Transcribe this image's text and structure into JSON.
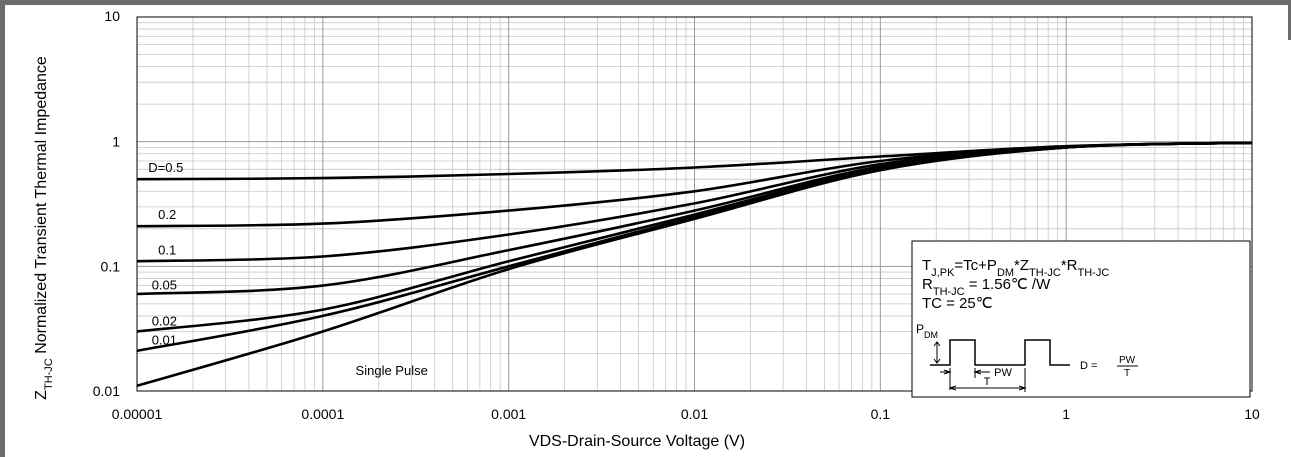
{
  "chart_data": {
    "type": "line",
    "x_scale": "log",
    "y_scale": "log",
    "xlim": [
      1e-05,
      10
    ],
    "ylim": [
      0.01,
      10
    ],
    "xlabel": "VDS-Drain-Source Voltage (V)",
    "ylabel_prefix": "Z",
    "ylabel_sub": "TH-JC",
    "ylabel_rest": " Normalized Transient Thermal Impedance",
    "x_ticks": [
      {
        "v": 1e-05,
        "label": "0.00001"
      },
      {
        "v": 0.0001,
        "label": "0.0001"
      },
      {
        "v": 0.001,
        "label": "0.001"
      },
      {
        "v": 0.01,
        "label": "0.01"
      },
      {
        "v": 0.1,
        "label": "0.1"
      },
      {
        "v": 1,
        "label": "1"
      },
      {
        "v": 10,
        "label": "10"
      }
    ],
    "y_ticks": [
      {
        "v": 0.01,
        "label": "0.01"
      },
      {
        "v": 0.1,
        "label": "0.1"
      },
      {
        "v": 1,
        "label": "1"
      },
      {
        "v": 10,
        "label": "10"
      }
    ],
    "grid": true,
    "series": [
      {
        "name": "D=0.5",
        "x": [
          1e-05,
          0.0001,
          0.001,
          0.01,
          0.1,
          1,
          10
        ],
        "y": [
          0.5,
          0.51,
          0.55,
          0.62,
          0.76,
          0.92,
          0.98
        ]
      },
      {
        "name": "0.2",
        "x": [
          1e-05,
          0.0001,
          0.001,
          0.01,
          0.1,
          1,
          10
        ],
        "y": [
          0.21,
          0.22,
          0.28,
          0.4,
          0.7,
          0.91,
          0.98
        ]
      },
      {
        "name": "0.1",
        "x": [
          1e-05,
          0.0001,
          0.001,
          0.01,
          0.1,
          1,
          10
        ],
        "y": [
          0.11,
          0.12,
          0.18,
          0.32,
          0.66,
          0.91,
          0.98
        ]
      },
      {
        "name": "0.05",
        "x": [
          1e-05,
          0.0001,
          0.001,
          0.01,
          0.1,
          1,
          10
        ],
        "y": [
          0.06,
          0.07,
          0.135,
          0.28,
          0.63,
          0.9,
          0.98
        ]
      },
      {
        "name": "0.02",
        "x": [
          1e-05,
          0.0001,
          0.001,
          0.01,
          0.1,
          1,
          10
        ],
        "y": [
          0.03,
          0.045,
          0.11,
          0.26,
          0.61,
          0.9,
          0.98
        ]
      },
      {
        "name": "0.01",
        "x": [
          1e-05,
          0.0001,
          0.001,
          0.01,
          0.1,
          1,
          10
        ],
        "y": [
          0.021,
          0.04,
          0.1,
          0.25,
          0.6,
          0.9,
          0.98
        ]
      },
      {
        "name": "Single Pulse",
        "x": [
          1e-05,
          0.0001,
          0.001,
          0.01,
          0.1,
          1,
          10
        ],
        "y": [
          0.011,
          0.03,
          0.095,
          0.24,
          0.59,
          0.9,
          0.98
        ]
      }
    ],
    "series_labels": [
      {
        "text": "D=0.5",
        "x": 1.15e-05,
        "y": 0.57
      },
      {
        "text": "0.2",
        "x": 1.3e-05,
        "y": 0.24
      },
      {
        "text": "0.1",
        "x": 1.3e-05,
        "y": 0.125
      },
      {
        "text": "0.05",
        "x": 1.2e-05,
        "y": 0.065
      },
      {
        "text": "0.02",
        "x": 1.2e-05,
        "y": 0.0335
      },
      {
        "text": "0.01",
        "x": 1.2e-05,
        "y": 0.0235
      },
      {
        "text": "Single Pulse",
        "x": 0.00015,
        "y": 0.0135
      }
    ]
  },
  "legend_box": {
    "formula": {
      "t": "T",
      "t_sub": "J,PK",
      "eq": "=Tc+P",
      "p_sub": "DM",
      "mul1": "*Z",
      "z_sub": "TH-JC",
      "mul2": "*R",
      "r_sub": "TH-JC"
    },
    "rth": {
      "r": "R",
      "r_sub": "TH-JC",
      "rest": " = 1.56℃ /W"
    },
    "tc": "TC = 25℃",
    "pulse": {
      "pdm": "P",
      "pdm_sub": "DM",
      "pw": "PW",
      "t": "T",
      "d": "D =",
      "d_num": "PW",
      "d_den": "T"
    }
  }
}
